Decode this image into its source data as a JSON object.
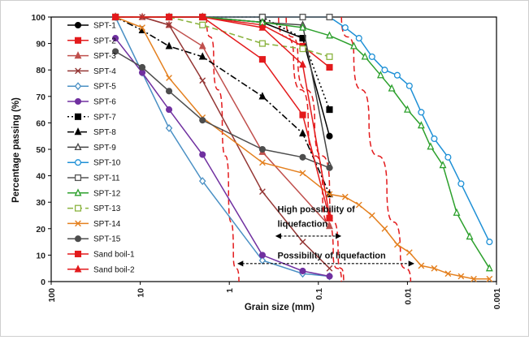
{
  "chart_data": {
    "type": "line",
    "xlabel": "Grain size (mm)",
    "ylabel": "Percentage passing (%)",
    "x_scale": "log",
    "x_reversed": true,
    "xlim": [
      100,
      0.001
    ],
    "ylim": [
      0,
      100
    ],
    "x_ticks": [
      100,
      10,
      1,
      0.1,
      0.01,
      0.001
    ],
    "x_tick_labels": [
      "100",
      "10",
      "1",
      "0.1",
      "0.01",
      "0.001"
    ],
    "y_ticks": [
      0,
      10,
      20,
      30,
      40,
      50,
      60,
      70,
      80,
      90,
      100
    ],
    "y_tick_labels": [
      "0",
      "10",
      "20",
      "30",
      "40",
      "50",
      "60",
      "70",
      "80",
      "90",
      "100"
    ],
    "grid": false,
    "legend_position": "left-inside",
    "series": [
      {
        "name": "SPT-1",
        "color": "#000000",
        "marker": "circle",
        "filled": true,
        "dash": "solid",
        "x": [
          19,
          4.75,
          2,
          0.425,
          0.15,
          0.075
        ],
        "y": [
          100,
          100,
          100,
          98,
          92,
          55
        ]
      },
      {
        "name": "SPT-2",
        "color": "#e31a1c",
        "marker": "square",
        "filled": true,
        "dash": "solid",
        "x": [
          19,
          4.75,
          2,
          0.425,
          0.15,
          0.075
        ],
        "y": [
          100,
          100,
          100,
          97,
          89,
          81
        ]
      },
      {
        "name": "SPT-3",
        "color": "#c0504d",
        "marker": "triangle",
        "filled": true,
        "dash": "solid",
        "x": [
          19,
          9.5,
          4.75,
          2,
          0.425,
          0.075
        ],
        "y": [
          100,
          100,
          97,
          89,
          49,
          21
        ]
      },
      {
        "name": "SPT-4",
        "color": "#943634",
        "marker": "x",
        "filled": false,
        "dash": "solid",
        "x": [
          19,
          9.5,
          4.75,
          2,
          0.425,
          0.15,
          0.075
        ],
        "y": [
          100,
          100,
          97,
          76,
          34,
          15,
          5
        ]
      },
      {
        "name": "SPT-5",
        "color": "#4a90c4",
        "marker": "diamond",
        "filled": false,
        "dash": "solid",
        "x": [
          19,
          9.5,
          4.75,
          2,
          0.425,
          0.15,
          0.075
        ],
        "y": [
          100,
          79,
          58,
          38,
          8,
          3,
          2
        ]
      },
      {
        "name": "SPT-6",
        "color": "#7030a0",
        "marker": "circle",
        "filled": true,
        "dash": "solid",
        "x": [
          19,
          9.5,
          4.75,
          2,
          0.425,
          0.15,
          0.075
        ],
        "y": [
          92,
          79,
          65,
          48,
          10,
          4,
          2
        ]
      },
      {
        "name": "SPT-7",
        "color": "#000000",
        "marker": "square",
        "filled": true,
        "dash": "dot",
        "x": [
          19,
          4.75,
          2,
          0.425,
          0.15,
          0.075
        ],
        "y": [
          100,
          100,
          100,
          100,
          92,
          65
        ]
      },
      {
        "name": "SPT-8",
        "color": "#000000",
        "marker": "triangle",
        "filled": true,
        "dash": "dashdot",
        "x": [
          19,
          9.5,
          4.75,
          2,
          0.425,
          0.15,
          0.075
        ],
        "y": [
          100,
          95,
          89,
          85,
          70,
          56,
          33
        ]
      },
      {
        "name": "SPT-9",
        "color": "#444444",
        "marker": "triangle",
        "filled": false,
        "dash": "solid",
        "x": [
          19,
          4.75,
          2,
          0.425,
          0.15,
          0.075
        ],
        "y": [
          100,
          100,
          100,
          98,
          97,
          44
        ]
      },
      {
        "name": "SPT-10",
        "color": "#1e90d6",
        "marker": "circle",
        "filled": false,
        "dash": "solid",
        "x": [
          19,
          4.75,
          2,
          0.425,
          0.15,
          0.075,
          0.05,
          0.035,
          0.025,
          0.018,
          0.013,
          0.0095,
          0.007,
          0.005,
          0.0035,
          0.0025,
          0.0012
        ],
        "y": [
          100,
          100,
          100,
          100,
          100,
          100,
          96,
          92,
          85,
          80,
          78,
          74,
          64,
          54,
          47,
          37,
          15
        ]
      },
      {
        "name": "SPT-11",
        "color": "#555555",
        "marker": "square",
        "filled": false,
        "dash": "solid",
        "x": [
          19,
          4.75,
          2,
          0.425,
          0.15,
          0.075
        ],
        "y": [
          100,
          100,
          100,
          100,
          100,
          100
        ]
      },
      {
        "name": "SPT-12",
        "color": "#2ca02c",
        "marker": "triangle",
        "filled": false,
        "dash": "solid",
        "x": [
          19,
          4.75,
          2,
          0.425,
          0.15,
          0.075,
          0.04,
          0.03,
          0.02,
          0.015,
          0.01,
          0.007,
          0.0055,
          0.004,
          0.0028,
          0.002,
          0.0012
        ],
        "y": [
          100,
          100,
          100,
          98,
          96,
          93,
          89,
          85,
          78,
          73,
          65,
          59,
          51,
          44,
          26,
          17,
          5
        ]
      },
      {
        "name": "SPT-13",
        "color": "#8ab33f",
        "marker": "square",
        "filled": false,
        "dash": "dash",
        "x": [
          19,
          4.75,
          2,
          0.425,
          0.15,
          0.075
        ],
        "y": [
          100,
          100,
          97,
          90,
          88,
          85
        ]
      },
      {
        "name": "SPT-14",
        "color": "#e4801f",
        "marker": "x",
        "filled": false,
        "dash": "solid",
        "x": [
          19,
          9.5,
          4.75,
          2,
          0.425,
          0.15,
          0.075,
          0.05,
          0.035,
          0.025,
          0.018,
          0.013,
          0.0095,
          0.007,
          0.005,
          0.0035,
          0.0025,
          0.0018,
          0.0012
        ],
        "y": [
          100,
          96,
          77,
          62,
          45,
          41,
          33,
          32,
          29,
          25,
          20,
          14,
          11,
          6,
          5,
          3,
          2,
          1,
          1
        ]
      },
      {
        "name": "SPT-15",
        "color": "#4d4d4d",
        "marker": "circle",
        "filled": true,
        "dash": "solid",
        "x": [
          19,
          9.5,
          4.75,
          2,
          0.425,
          0.15,
          0.075
        ],
        "y": [
          87,
          81,
          72,
          61,
          50,
          47,
          43
        ]
      },
      {
        "name": "Sand boil-1",
        "color": "#e31a1c",
        "marker": "square",
        "filled": true,
        "dash": "solid",
        "x": [
          19,
          4.75,
          2,
          0.425,
          0.15,
          0.075
        ],
        "y": [
          100,
          100,
          100,
          84,
          63,
          24
        ]
      },
      {
        "name": "Sand boil-2",
        "color": "#e31a1c",
        "marker": "triangle",
        "filled": true,
        "dash": "solid",
        "x": [
          19,
          4.75,
          2,
          0.425,
          0.15,
          0.075
        ],
        "y": [
          100,
          100,
          100,
          96,
          82,
          25
        ]
      }
    ],
    "boundaries": [
      {
        "color": "#e31a1c",
        "dash": "dash",
        "x": [
          1.8,
          1.5,
          1.2,
          1.02,
          0.9,
          0.78
        ],
        "y": [
          100,
          85,
          60,
          35,
          10,
          0
        ]
      },
      {
        "color": "#e31a1c",
        "dash": "dash",
        "x": [
          0.23,
          0.17,
          0.11,
          0.075,
          0.06,
          0.052
        ],
        "y": [
          100,
          85,
          60,
          35,
          10,
          0
        ]
      },
      {
        "color": "#e31a1c",
        "dash": "dash",
        "x": [
          0.28,
          0.19,
          0.13,
          0.09,
          0.068,
          0.055
        ],
        "y": [
          100,
          85,
          60,
          35,
          10,
          0
        ]
      },
      {
        "color": "#e31a1c",
        "dash": "dash",
        "x": [
          0.055,
          0.04,
          0.027,
          0.017,
          0.012,
          0.0092
        ],
        "y": [
          100,
          85,
          60,
          35,
          10,
          0
        ]
      }
    ],
    "annotations": [
      {
        "text": "High possibility of",
        "x": 0.3,
        "y": 27.5
      },
      {
        "text": "liquefaction",
        "x": 0.3,
        "y": 22
      },
      {
        "text": "Possibility of liquefaction",
        "x": 0.3,
        "y": 10
      }
    ],
    "arrows": [
      {
        "from": 0.3,
        "to": 0.056,
        "y": 17.2
      },
      {
        "from": 0.8,
        "to": 0.0085,
        "y": 6.8
      }
    ]
  }
}
